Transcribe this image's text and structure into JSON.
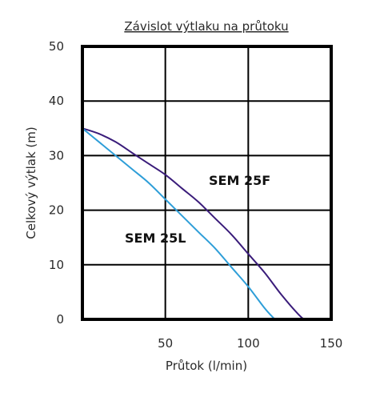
{
  "chart_data": {
    "type": "line",
    "title": "Závislot výtlaku na průtoku",
    "xlabel": "Průtok (l/min)",
    "ylabel": "Celkový výtlak (m)",
    "xlim": [
      0,
      150
    ],
    "ylim": [
      0,
      50
    ],
    "x_ticks": [
      "50",
      "100",
      "150"
    ],
    "y_ticks": [
      "0",
      "10",
      "20",
      "30",
      "40",
      "50"
    ],
    "grid": true,
    "series": [
      {
        "name": "SEM 25F",
        "color": "#3a1c7a",
        "x": [
          0,
          10,
          20,
          30,
          40,
          50,
          60,
          70,
          80,
          90,
          100,
          110,
          120,
          130,
          134,
          137
        ],
        "y": [
          35,
          34,
          32.5,
          30.5,
          28.5,
          26.5,
          24,
          21.5,
          18.5,
          15.5,
          12,
          8.5,
          4.5,
          1,
          0,
          0
        ]
      },
      {
        "name": "SEM 25L",
        "color": "#2e9ed8",
        "x": [
          0,
          10,
          20,
          30,
          40,
          50,
          60,
          70,
          80,
          90,
          100,
          110,
          116
        ],
        "y": [
          35,
          32.5,
          30,
          27.5,
          25,
          22,
          19,
          16,
          13,
          9.5,
          6,
          2,
          0
        ]
      }
    ]
  }
}
